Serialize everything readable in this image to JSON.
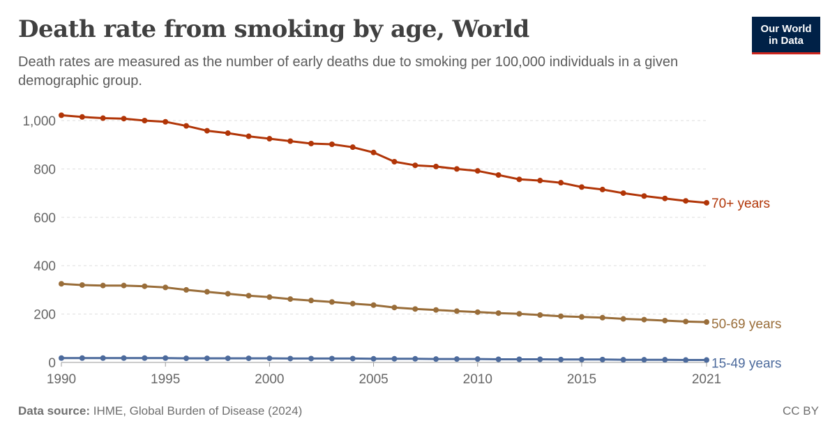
{
  "header": {
    "title": "Death rate from smoking by age, World",
    "subtitle": "Death rates are measured as the number of early deaths due to smoking per 100,000 individuals in a given demographic group.",
    "logo_line1": "Our World",
    "logo_line2": "in Data"
  },
  "footer": {
    "source_label": "Data source:",
    "source_text": "IHME, Global Burden of Disease (2024)",
    "license": "CC BY"
  },
  "chart_data": {
    "type": "line",
    "title": "Death rate from smoking by age, World",
    "xlabel": "",
    "ylabel": "",
    "xlim": [
      1990,
      2021
    ],
    "ylim": [
      0,
      1000
    ],
    "grid": true,
    "legend": "inline-right",
    "x": [
      1990,
      1991,
      1992,
      1993,
      1994,
      1995,
      1996,
      1997,
      1998,
      1999,
      2000,
      2001,
      2002,
      2003,
      2004,
      2005,
      2006,
      2007,
      2008,
      2009,
      2010,
      2011,
      2012,
      2013,
      2014,
      2015,
      2016,
      2017,
      2018,
      2019,
      2020,
      2021
    ],
    "x_ticks": [
      1990,
      1995,
      2000,
      2005,
      2010,
      2015,
      2021
    ],
    "x_tick_labels": [
      "1990",
      "1995",
      "2000",
      "2005",
      "2010",
      "2015",
      "2021"
    ],
    "y_ticks": [
      0,
      200,
      400,
      600,
      800,
      1000
    ],
    "y_tick_labels": [
      "0",
      "200",
      "400",
      "600",
      "800",
      "1,000"
    ],
    "series": [
      {
        "name": "70+ years",
        "color": "#b13507",
        "values": [
          1022,
          1015,
          1010,
          1008,
          1000,
          995,
          978,
          958,
          948,
          935,
          925,
          915,
          905,
          902,
          890,
          868,
          830,
          815,
          810,
          800,
          792,
          775,
          757,
          752,
          743,
          725,
          715,
          700,
          688,
          678,
          668,
          660
        ]
      },
      {
        "name": "50-69 years",
        "color": "#996d39",
        "values": [
          325,
          320,
          318,
          318,
          315,
          310,
          300,
          292,
          284,
          276,
          270,
          262,
          256,
          250,
          243,
          237,
          227,
          221,
          217,
          212,
          208,
          204,
          201,
          196,
          191,
          188,
          185,
          180,
          177,
          173,
          169,
          167
        ]
      },
      {
        "name": "15-49 years",
        "color": "#4c6a9c",
        "values": [
          18,
          18,
          18,
          18,
          18,
          18,
          17,
          17,
          17,
          17,
          17,
          16,
          16,
          16,
          16,
          15,
          15,
          15,
          14,
          14,
          14,
          13,
          13,
          13,
          12,
          12,
          12,
          11,
          11,
          11,
          10,
          10
        ]
      }
    ]
  }
}
